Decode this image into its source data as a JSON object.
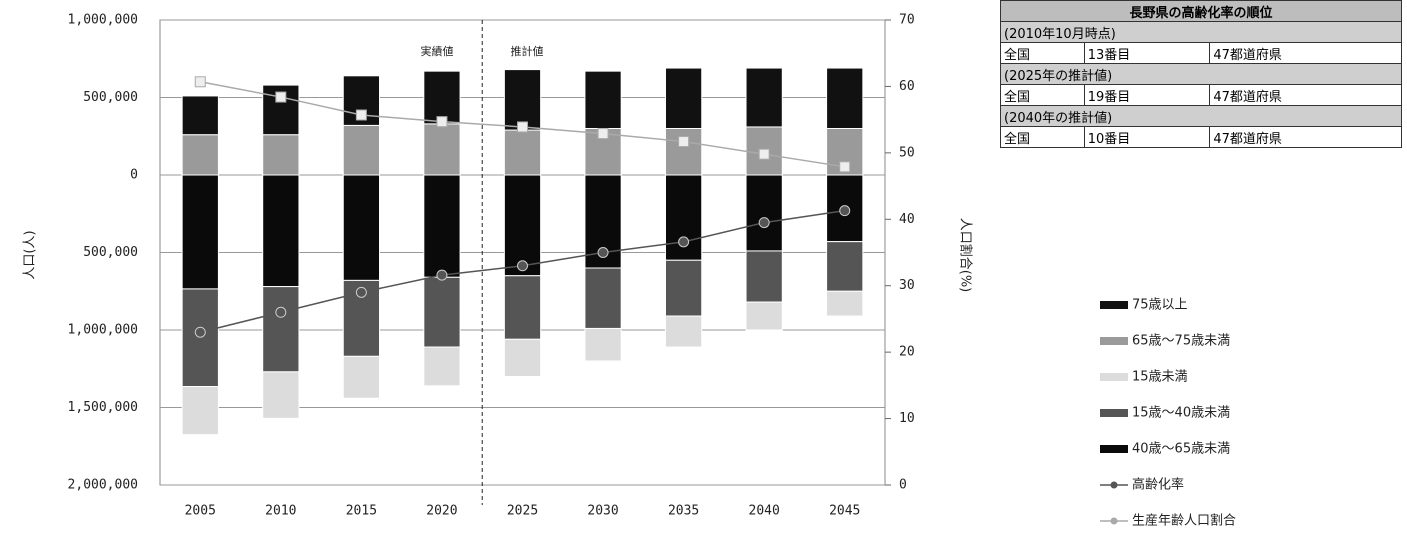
{
  "chart_data": {
    "type": "bar",
    "annotations": [
      "実績値",
      "推計値"
    ],
    "y_label": "人口(人)",
    "y2_label": "人口割合(%)",
    "categories": [
      "2005",
      "2010",
      "2015",
      "2020",
      "2025",
      "2030",
      "2035",
      "2040",
      "2045"
    ],
    "series": [
      {
        "name": "75歳以上",
        "color": "#111111",
        "values": [
          250000,
          320000,
          320000,
          340000,
          390000,
          370000,
          390000,
          380000,
          390000
        ]
      },
      {
        "name": "65歳～75歳未満",
        "color": "#9a9a9a",
        "values": [
          260000,
          260000,
          320000,
          330000,
          290000,
          300000,
          300000,
          310000,
          300000
        ]
      },
      {
        "name": "15歳未満",
        "color": "#dcdcdc",
        "values": [
          -310000,
          -300000,
          -270000,
          -250000,
          -240000,
          -210000,
          -200000,
          -180000,
          -160000
        ]
      },
      {
        "name": "15歳～40歳未満",
        "color": "#555555",
        "values": [
          -630000,
          -550000,
          -490000,
          -450000,
          -410000,
          -390000,
          -360000,
          -330000,
          -320000
        ]
      },
      {
        "name": "40歳～65歳未満",
        "color": "#0a0a0a",
        "values": [
          -735000,
          -720000,
          -680000,
          -660000,
          -650000,
          -600000,
          -550000,
          -490000,
          -430000
        ]
      },
      {
        "name": "高齢化率",
        "type": "line",
        "axis": "y2",
        "color": "#555555",
        "values": [
          23,
          26,
          29,
          31.6,
          33,
          35,
          36.6,
          39.5,
          41.3
        ]
      },
      {
        "name": "生産年齢人口割合",
        "type": "line",
        "axis": "y2",
        "color": "#aaaaaa",
        "values": [
          60.7,
          58.4,
          55.7,
          54.7,
          53.9,
          52.9,
          51.7,
          49.8,
          47.9
        ]
      }
    ],
    "ylim": [
      -2000000,
      1000000
    ],
    "yticks": [
      {
        "value": -2000000,
        "label": "2,000,000"
      },
      {
        "value": -1500000,
        "label": "1,500,000"
      },
      {
        "value": -1000000,
        "label": "1,000,000"
      },
      {
        "value": -500000,
        "label": "500,000"
      },
      0,
      {
        "value": 500000,
        "label": "500,000"
      },
      {
        "value": 1000000,
        "label": "1,000,000"
      }
    ],
    "y2lim": [
      0,
      70
    ],
    "y2ticks": [
      0,
      10,
      20,
      30,
      40,
      50,
      60,
      70
    ],
    "grid": true,
    "legend": "right"
  },
  "ranking_table": {
    "title": "長野県の高齢化率の順位",
    "sections": [
      {
        "heading": "(2010年10月時点)",
        "cells": [
          "全国",
          "13番目",
          "47都道府県"
        ]
      },
      {
        "heading": "(2025年の推計値)",
        "cells": [
          "全国",
          "19番目",
          "47都道府県"
        ]
      },
      {
        "heading": "(2040年の推計値)",
        "cells": [
          "全国",
          "10番目",
          "47都道府県"
        ]
      }
    ]
  }
}
